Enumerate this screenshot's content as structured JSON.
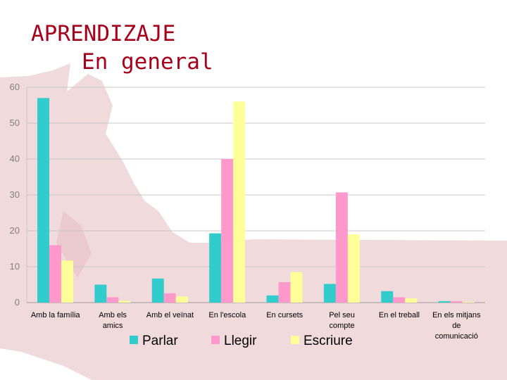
{
  "title": {
    "line1": "APRENDIZAJE",
    "line2": "En general"
  },
  "colors": {
    "title": "#a8001a",
    "background_accent": "#e9c3c7"
  },
  "chart_data": {
    "type": "bar",
    "categories": [
      [
        "Amb la família"
      ],
      [
        "Amb els",
        "amics"
      ],
      [
        "Amb el veïnat"
      ],
      [
        "En l'escola"
      ],
      [
        "En cursets"
      ],
      [
        "Pel seu",
        "compte"
      ],
      [
        "En el treball"
      ],
      [
        "En els mitjans",
        "de",
        "comunicació"
      ]
    ],
    "series": [
      {
        "name": "Parlar",
        "color": "#33cccc",
        "values": [
          57,
          5,
          6.7,
          19.3,
          2,
          5.2,
          3.2,
          0.4
        ]
      },
      {
        "name": "Llegir",
        "color": "#ff99cc",
        "values": [
          16,
          1.5,
          2.6,
          40,
          5.7,
          30.7,
          1.5,
          0.4
        ]
      },
      {
        "name": "Escriure",
        "color": "#ffff99",
        "values": [
          11.7,
          0.5,
          1.7,
          56,
          8.5,
          19,
          1.2,
          0.2
        ]
      }
    ],
    "ylim": [
      0,
      60
    ],
    "yticks": [
      "0",
      "10",
      "20",
      "30",
      "40",
      "50",
      "60"
    ],
    "grid": true,
    "legend": "bottom"
  }
}
